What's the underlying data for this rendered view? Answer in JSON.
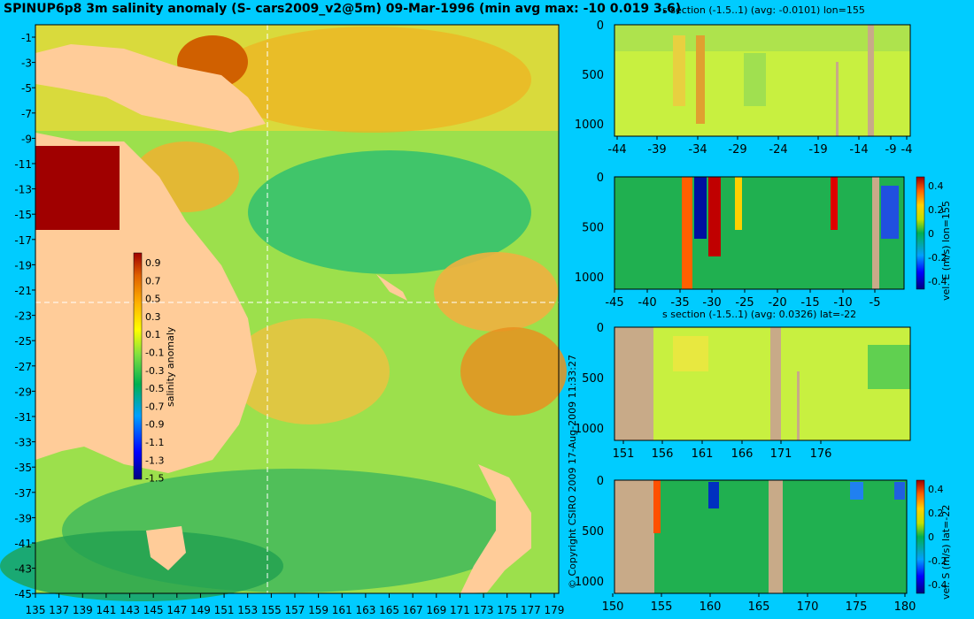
{
  "main_title": "SPINUP6p8 3m salinity anomaly (S- cars2009_v2@5m) 09-Mar-1996 (min avg max: -10 0.019 3.6)",
  "copyright": "© Copyright CSIRO 2009   17-Aug-2009 11:33:27",
  "colors": {
    "background": "#00ccff",
    "land": "#ffcc99",
    "section_land": "#c8aa88"
  },
  "chart_data": [
    {
      "type": "heatmap",
      "name": "map",
      "x_ticks": [
        "135",
        "137",
        "139",
        "141",
        "143",
        "145",
        "147",
        "149",
        "151",
        "153",
        "155",
        "157",
        "159",
        "161",
        "163",
        "165",
        "167",
        "169",
        "171",
        "173",
        "175",
        "177",
        "179"
      ],
      "y_ticks": [
        "-1",
        "-3",
        "-5",
        "-7",
        "-9",
        "-11",
        "-13",
        "-15",
        "-17",
        "-19",
        "-21",
        "-23",
        "-25",
        "-27",
        "-29",
        "-31",
        "-33",
        "-35",
        "-37",
        "-39",
        "-41",
        "-43",
        "-45"
      ],
      "xlim": [
        135,
        180
      ],
      "ylim": [
        -45,
        0
      ],
      "crosshair_lon": 155,
      "crosshair_lat": -22,
      "colorbar": {
        "label": "salinity anomaly",
        "ticks": [
          "0.9",
          "0.7",
          "0.5",
          "0.3",
          "0.1",
          "-0.1",
          "-0.3",
          "-0.5",
          "-0.7",
          "-0.9",
          "-1.1",
          "-1.3",
          "-1.5"
        ],
        "range": [
          -1.5,
          1.0
        ]
      }
    },
    {
      "type": "heatmap",
      "name": "section-1",
      "title": "s section (-1.5..1) (avg: -0.0101) lon=155",
      "x_ticks": [
        "-44",
        "-39",
        "-34",
        "-29",
        "-24",
        "-19",
        "-14",
        "-9",
        "-4"
      ],
      "y_ticks": [
        "0",
        "500",
        "1000"
      ]
    },
    {
      "type": "heatmap",
      "name": "section-2",
      "x_ticks": [
        "-45",
        "-40",
        "-35",
        "-30",
        "-25",
        "-20",
        "-15",
        "-10",
        "-5"
      ],
      "y_ticks": [
        "0",
        "500",
        "1000"
      ],
      "colorbar": {
        "label": "vel. E (m/s) lon=155",
        "ticks": [
          "0.4",
          "0.2",
          "0",
          "-0.2",
          "-0.4"
        ]
      }
    },
    {
      "type": "heatmap",
      "name": "section-3",
      "title": "s section (-1.5..1) (avg: 0.0326) lat=-22",
      "x_ticks": [
        "151",
        "156",
        "161",
        "166",
        "171",
        "176"
      ],
      "y_ticks": [
        "0",
        "500",
        "1000"
      ]
    },
    {
      "type": "heatmap",
      "name": "section-4",
      "x_ticks": [
        "150",
        "155",
        "160",
        "165",
        "170",
        "175",
        "180"
      ],
      "y_ticks": [
        "0",
        "500",
        "1000"
      ],
      "colorbar": {
        "label": "vel. S (m/s) lat=-22",
        "ticks": [
          "0.4",
          "0.2",
          "0",
          "-0.2",
          "-0.4"
        ]
      }
    }
  ]
}
